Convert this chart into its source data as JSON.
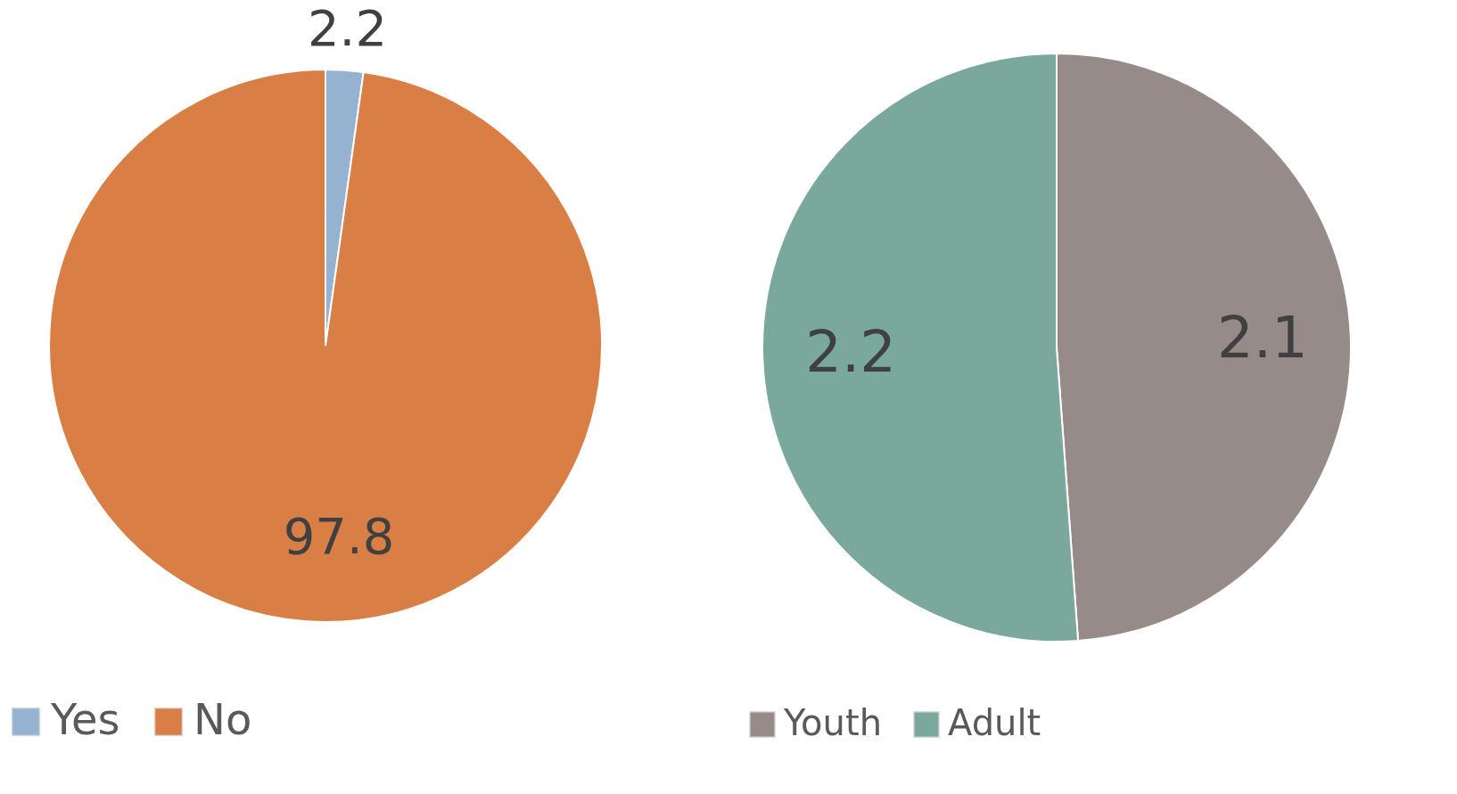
{
  "chart_data": [
    {
      "type": "pie",
      "categories": [
        "Yes",
        "No"
      ],
      "values": [
        2.2,
        97.8
      ],
      "colors": [
        "#95b3d0",
        "#d97f46"
      ],
      "data_labels": true,
      "legend": "bottom"
    },
    {
      "type": "pie",
      "categories": [
        "Youth",
        "Adult"
      ],
      "values": [
        2.1,
        2.2
      ],
      "colors": [
        "#968b89",
        "#7ba89c"
      ],
      "data_labels": true,
      "legend": "bottom"
    }
  ]
}
